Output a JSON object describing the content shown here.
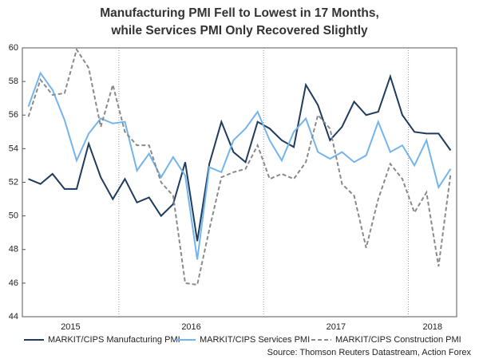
{
  "chart_data": {
    "type": "line",
    "title": [
      "Manufacturing PMI Fell to Lowest in 17 Months,",
      "while Services PMI Only Recovered Slightly"
    ],
    "categories": [
      null,
      null,
      null,
      null,
      null,
      null,
      null,
      null,
      null,
      null,
      null,
      null,
      null,
      null,
      null,
      null,
      null,
      null,
      null,
      null,
      null,
      null,
      null,
      null,
      null,
      null,
      null,
      null,
      null,
      null,
      null,
      null,
      null,
      null,
      null,
      null
    ],
    "x_groups": [
      {
        "label": "2015",
        "count": 8
      },
      {
        "label": "2016",
        "count": 12
      },
      {
        "label": "2017",
        "count": 12
      },
      {
        "label": "2018",
        "count": 4
      }
    ],
    "series": [
      {
        "name": "MARKIT/CIPS Manufacturing PMI",
        "color": "#1f3b5e",
        "dashed": false,
        "values": [
          52.2,
          51.9,
          52.5,
          51.6,
          51.6,
          54.3,
          52.3,
          51.0,
          52.2,
          50.8,
          51.1,
          50.0,
          50.7,
          53.2,
          48.5,
          53.1,
          55.6,
          53.8,
          53.2,
          55.6,
          55.2,
          54.5,
          54.1,
          57.8,
          56.6,
          54.5,
          55.3,
          56.8,
          56.0,
          56.2,
          58.3,
          56.0,
          55.0,
          54.9,
          54.9,
          53.9
        ]
      },
      {
        "name": "MARKIT/CIPS Services PMI",
        "color": "#74b4ec",
        "dashed": false,
        "values": [
          56.5,
          58.5,
          57.5,
          55.7,
          53.3,
          54.9,
          55.8,
          55.5,
          55.6,
          52.7,
          53.7,
          52.3,
          53.5,
          52.4,
          47.4,
          52.9,
          52.6,
          54.5,
          55.2,
          56.2,
          54.5,
          53.3,
          55.0,
          55.8,
          53.8,
          53.4,
          53.8,
          53.2,
          53.6,
          55.6,
          53.8,
          54.2,
          53.0,
          54.5,
          51.7,
          52.8
        ]
      },
      {
        "name": "MARKIT/CIPS Construction PMI",
        "color": "#8a8a8a",
        "dashed": true,
        "values": [
          55.9,
          58.1,
          57.2,
          57.3,
          59.9,
          58.8,
          55.3,
          57.8,
          55.0,
          54.2,
          54.2,
          52.0,
          51.2,
          46.0,
          45.9,
          49.2,
          52.3,
          52.6,
          52.8,
          54.2,
          52.2,
          52.5,
          52.2,
          53.2,
          56.0,
          55.2,
          51.9,
          51.2,
          48.1,
          51.0,
          53.1,
          52.2,
          50.2,
          51.4,
          47.0,
          52.5
        ]
      }
    ],
    "ylim": [
      44,
      60
    ],
    "yticks": [
      44,
      46,
      48,
      50,
      52,
      54,
      56,
      58,
      60
    ],
    "legend": "bottom",
    "source": "Source: Thomson Reuters Datastream, Action Forex"
  }
}
